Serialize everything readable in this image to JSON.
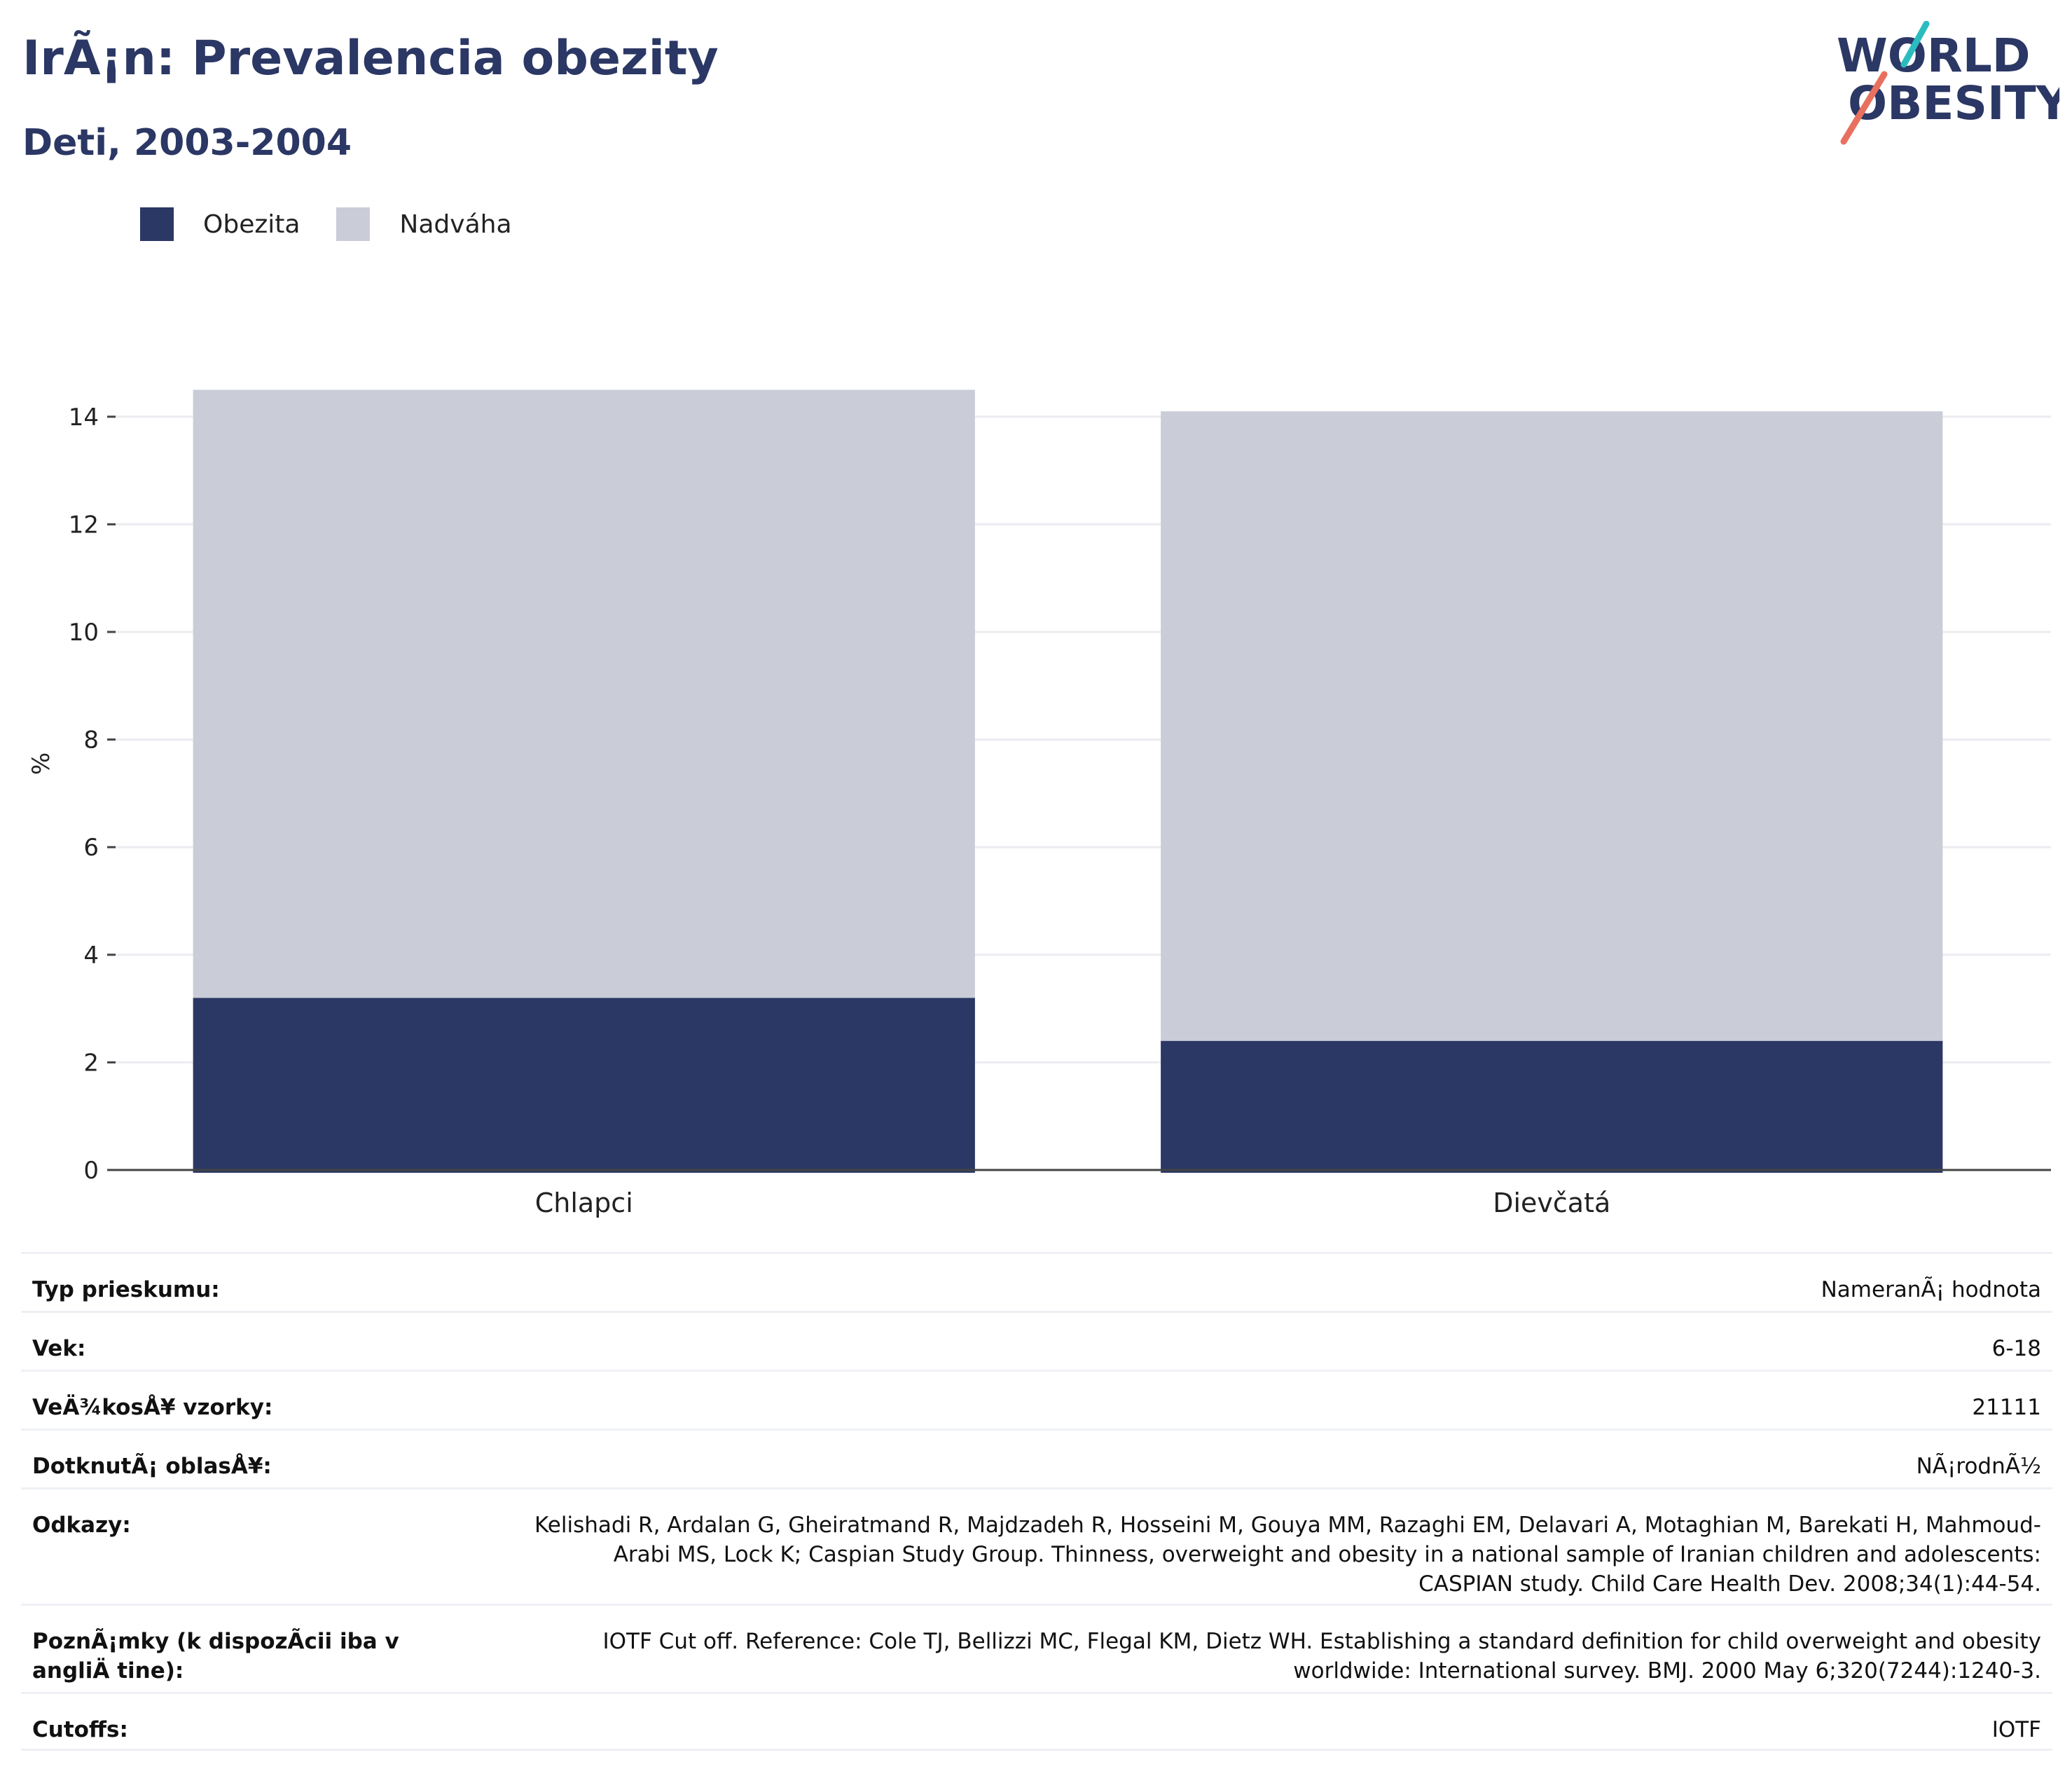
{
  "header": {
    "title": "IrÃ¡n: Prevalencia obezity",
    "subtitle": "Deti, 2003-2004",
    "logo_line1": "WORLD",
    "logo_line2": "OBESITY"
  },
  "colors": {
    "obesity": "#2b3764",
    "overweight": "#cacdd8",
    "logo_teal": "#2bbcc0",
    "logo_coral": "#e8705f"
  },
  "chart_data": {
    "type": "bar",
    "stacked": true,
    "categories": [
      "Chlapci",
      "Dievčatá"
    ],
    "series": [
      {
        "name": "Obezita",
        "values": [
          3.2,
          2.4
        ]
      },
      {
        "name": "Nadváha",
        "values": [
          11.3,
          11.7
        ]
      }
    ],
    "ylabel": "%",
    "ylim": [
      0,
      15
    ],
    "yticks": [
      0,
      2,
      4,
      6,
      8,
      10,
      12,
      14
    ],
    "grid": true,
    "legend": "top-left"
  },
  "info": [
    {
      "key": "Typ prieskumu:",
      "value": "NameranÃ¡ hodnota"
    },
    {
      "key": "Vek:",
      "value": "6-18"
    },
    {
      "key": "VeÄ¾kosÅ¥ vzorky:",
      "value": "21111"
    },
    {
      "key": "DotknutÃ¡ oblasÅ¥:",
      "value": "NÃ¡rodnÃ½"
    },
    {
      "key": "Odkazy:",
      "value": "Kelishadi R, Ardalan G, Gheiratmand R, Majdzadeh R, Hosseini M, Gouya MM, Razaghi EM, Delavari A, Motaghian M, Barekati H, Mahmoud-Arabi MS, Lock K; Caspian Study Group. Thinness, overweight and obesity in a national sample of Iranian children and adolescents: CASPIAN study. Child Care Health Dev. 2008;34(1):44-54."
    },
    {
      "key": "PoznÃ¡mky (k dispozÃcii iba v angliÄ tine):",
      "value": "IOTF Cut off. Reference: Cole TJ, Bellizzi MC, Flegal KM, Dietz WH. Establishing a standard definition for child overweight and obesity worldwide: International survey. BMJ. 2000 May 6;320(7244):1240-3."
    },
    {
      "key": "Cutoffs:",
      "value": "IOTF"
    }
  ]
}
